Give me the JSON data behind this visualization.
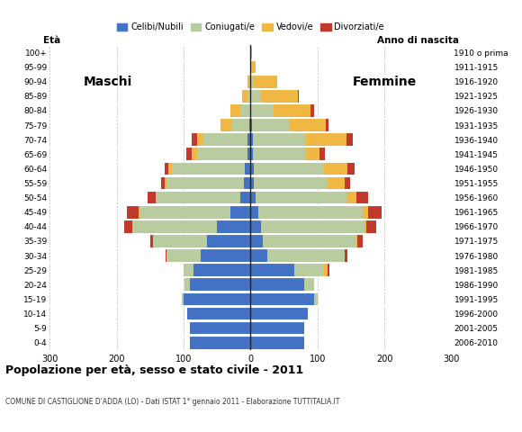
{
  "age_groups": [
    "0-4",
    "5-9",
    "10-14",
    "15-19",
    "20-24",
    "25-29",
    "30-34",
    "35-39",
    "40-44",
    "45-49",
    "50-54",
    "55-59",
    "60-64",
    "65-69",
    "70-74",
    "75-79",
    "80-84",
    "85-89",
    "90-94",
    "95-99",
    "100+"
  ],
  "birth_years": [
    "2006-2010",
    "2001-2005",
    "1996-2000",
    "1991-1995",
    "1986-1990",
    "1981-1985",
    "1976-1980",
    "1971-1975",
    "1966-1970",
    "1961-1965",
    "1956-1960",
    "1951-1955",
    "1946-1950",
    "1941-1945",
    "1936-1940",
    "1931-1935",
    "1926-1930",
    "1921-1925",
    "1916-1920",
    "1911-1915",
    "1910 o prima"
  ],
  "male": {
    "celibe": [
      90,
      90,
      95,
      100,
      90,
      85,
      75,
      65,
      50,
      30,
      15,
      10,
      8,
      5,
      5,
      2,
      0,
      0,
      0,
      0,
      0
    ],
    "coniugato": [
      0,
      0,
      0,
      3,
      8,
      15,
      50,
      80,
      125,
      135,
      125,
      115,
      110,
      75,
      65,
      25,
      15,
      5,
      2,
      0,
      0
    ],
    "vedovo": [
      0,
      0,
      0,
      0,
      0,
      0,
      0,
      0,
      1,
      2,
      2,
      3,
      5,
      8,
      10,
      18,
      15,
      8,
      2,
      0,
      0
    ],
    "divorziato": [
      0,
      0,
      0,
      0,
      0,
      0,
      2,
      5,
      12,
      18,
      12,
      5,
      5,
      8,
      8,
      0,
      0,
      0,
      0,
      0,
      0
    ]
  },
  "female": {
    "celibe": [
      80,
      80,
      85,
      95,
      80,
      65,
      25,
      18,
      15,
      12,
      8,
      5,
      5,
      3,
      3,
      2,
      0,
      0,
      0,
      0,
      0
    ],
    "coniugato": [
      0,
      0,
      0,
      5,
      15,
      45,
      115,
      140,
      155,
      155,
      135,
      110,
      105,
      80,
      80,
      55,
      35,
      15,
      5,
      2,
      0
    ],
    "vedovo": [
      0,
      0,
      0,
      0,
      0,
      5,
      0,
      2,
      3,
      8,
      15,
      25,
      35,
      20,
      60,
      55,
      55,
      55,
      35,
      5,
      2
    ],
    "divorziato": [
      0,
      0,
      0,
      0,
      0,
      3,
      5,
      8,
      15,
      20,
      18,
      8,
      10,
      8,
      10,
      5,
      5,
      2,
      0,
      0,
      0
    ]
  },
  "colors": {
    "celibe": "#4472c4",
    "coniugato": "#b8cca0",
    "vedovo": "#f0b842",
    "divorziato": "#c0392b"
  },
  "xlim": 300,
  "title": "Popolazione per età, sesso e stato civile - 2011",
  "subtitle": "COMUNE DI CASTIGLIONE D'ADDA (LO) - Dati ISTAT 1° gennaio 2011 - Elaborazione TUTTITALIA.IT",
  "ylabel_left": "Età",
  "ylabel_right": "Anno di nascita",
  "label_maschi": "Maschi",
  "label_femmine": "Femmine",
  "legend_labels": [
    "Celibi/Nubili",
    "Coniugati/e",
    "Vedovi/e",
    "Divorziati/e"
  ],
  "bg_color": "#ffffff",
  "grid_color": "#bbbbbb"
}
